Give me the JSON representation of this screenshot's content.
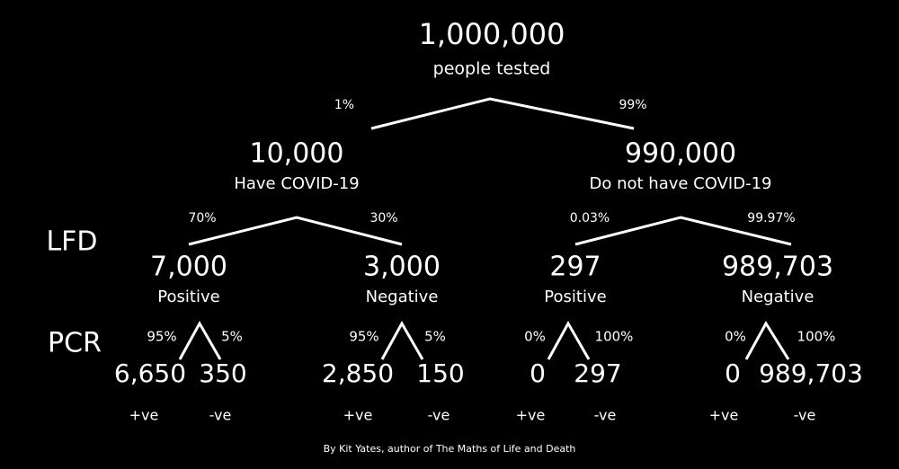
{
  "root": {
    "value": "1,000,000",
    "label": "people tested"
  },
  "row_labels": [
    "LFD",
    "PCR"
  ],
  "level1": [
    {
      "edge": "1%",
      "value": "10,000",
      "label": "Have COVID-19"
    },
    {
      "edge": "99%",
      "value": "990,000",
      "label": "Do not have COVID-19"
    }
  ],
  "level2": [
    {
      "edge": "70%",
      "value": "7,000",
      "label": "Positive"
    },
    {
      "edge": "30%",
      "value": "3,000",
      "label": "Negative"
    },
    {
      "edge": "0.03%",
      "value": "297",
      "label": "Positive"
    },
    {
      "edge": "99.97%",
      "value": "989,703",
      "label": "Negative"
    }
  ],
  "level3": [
    {
      "edge": "95%",
      "value": "6,650",
      "label": "+ve"
    },
    {
      "edge": "5%",
      "value": "350",
      "label": "-ve"
    },
    {
      "edge": "95%",
      "value": "2,850",
      "label": "+ve"
    },
    {
      "edge": "5%",
      "value": "150",
      "label": "-ve"
    },
    {
      "edge": "0%",
      "value": "0",
      "label": "+ve"
    },
    {
      "edge": "100%",
      "value": "297",
      "label": "-ve"
    },
    {
      "edge": "0%",
      "value": "0",
      "label": "+ve"
    },
    {
      "edge": "100%",
      "value": "989,703",
      "label": "-ve"
    }
  ],
  "credit": "By Kit Yates, author of The Maths of Life and Death"
}
